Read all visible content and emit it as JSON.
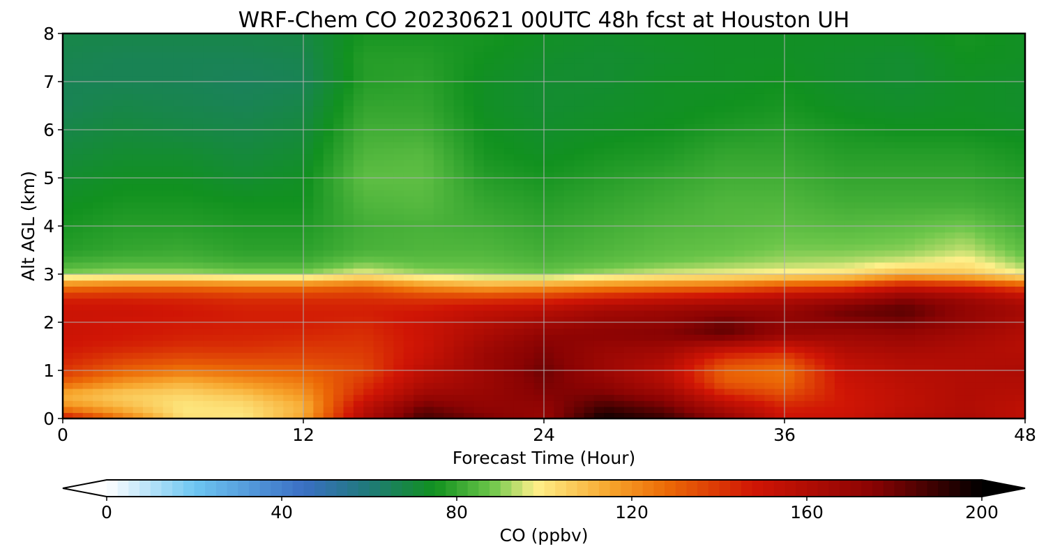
{
  "chart_data": {
    "type": "heatmap",
    "title": "WRF-Chem CO  20230621 00UTC 48h fcst at Houston UH",
    "xlabel": "Forecast Time (Hour)",
    "ylabel": "Alt AGL (km)",
    "xlim": [
      0,
      48
    ],
    "ylim": [
      0,
      8
    ],
    "x_ticks": [
      0,
      12,
      24,
      36,
      48
    ],
    "y_ticks": [
      0,
      1,
      2,
      3,
      4,
      5,
      6,
      7,
      8
    ],
    "grid": true,
    "x": [
      0,
      3,
      6,
      9,
      12,
      15,
      18,
      21,
      24,
      27,
      30,
      33,
      36,
      39,
      42,
      45,
      48
    ],
    "y": [
      0,
      0.25,
      0.5,
      0.75,
      1,
      1.25,
      1.5,
      1.75,
      2,
      2.25,
      2.5,
      2.75,
      3,
      3.25,
      3.5,
      4,
      4.5,
      5,
      5.5,
      6,
      6.5,
      7,
      7.5,
      8
    ],
    "profiles": [
      [
        150,
        120,
        112,
        130,
        140,
        145,
        148,
        150,
        150,
        150,
        145,
        125,
        90,
        82,
        78,
        76,
        74,
        72,
        70,
        68,
        66,
        66,
        67,
        68
      ],
      [
        125,
        110,
        106,
        118,
        130,
        138,
        145,
        148,
        148,
        150,
        145,
        128,
        92,
        84,
        80,
        78,
        76,
        74,
        72,
        70,
        68,
        66,
        66,
        68
      ],
      [
        102,
        100,
        104,
        112,
        125,
        135,
        142,
        146,
        147,
        148,
        144,
        128,
        92,
        84,
        81,
        78,
        76,
        74,
        72,
        69,
        67,
        66,
        66,
        68
      ],
      [
        100,
        102,
        108,
        118,
        128,
        136,
        142,
        145,
        146,
        146,
        142,
        126,
        90,
        82,
        79,
        77,
        75,
        72,
        70,
        68,
        66,
        65,
        66,
        68
      ],
      [
        115,
        112,
        118,
        124,
        130,
        136,
        140,
        144,
        146,
        146,
        142,
        126,
        90,
        82,
        79,
        77,
        75,
        74,
        72,
        70,
        68,
        66,
        67,
        69
      ],
      [
        160,
        155,
        145,
        140,
        136,
        138,
        140,
        142,
        144,
        146,
        142,
        130,
        98,
        88,
        83,
        82,
        84,
        86,
        84,
        82,
        80,
        78,
        78,
        76
      ],
      [
        188,
        180,
        168,
        160,
        156,
        152,
        150,
        150,
        150,
        148,
        140,
        120,
        92,
        86,
        84,
        83,
        85,
        86,
        85,
        82,
        80,
        79,
        78,
        76
      ],
      [
        178,
        172,
        170,
        168,
        168,
        168,
        166,
        162,
        158,
        154,
        140,
        115,
        90,
        86,
        84,
        82,
        80,
        78,
        76,
        75,
        74,
        74,
        75,
        76
      ],
      [
        170,
        172,
        176,
        178,
        180,
        178,
        176,
        172,
        165,
        158,
        142,
        118,
        88,
        84,
        82,
        80,
        78,
        76,
        74,
        73,
        72,
        72,
        73,
        74
      ],
      [
        198,
        188,
        178,
        172,
        168,
        168,
        170,
        174,
        170,
        165,
        148,
        122,
        92,
        86,
        84,
        82,
        80,
        78,
        76,
        74,
        73,
        72,
        72,
        73
      ],
      [
        190,
        180,
        170,
        160,
        158,
        162,
        168,
        176,
        172,
        168,
        152,
        125,
        96,
        88,
        86,
        84,
        82,
        80,
        77,
        75,
        74,
        74,
        73,
        74
      ],
      [
        172,
        160,
        145,
        132,
        130,
        140,
        158,
        182,
        180,
        172,
        155,
        128,
        98,
        90,
        87,
        85,
        84,
        82,
        80,
        77,
        75,
        74,
        74,
        74
      ],
      [
        150,
        145,
        135,
        128,
        126,
        135,
        150,
        170,
        172,
        170,
        160,
        135,
        100,
        92,
        89,
        86,
        84,
        82,
        80,
        78,
        76,
        75,
        74,
        74
      ],
      [
        150,
        148,
        148,
        150,
        152,
        156,
        162,
        168,
        175,
        180,
        165,
        138,
        102,
        93,
        89,
        85,
        82,
        80,
        78,
        76,
        74,
        73,
        73,
        74
      ],
      [
        158,
        155,
        155,
        156,
        158,
        160,
        165,
        170,
        178,
        184,
        175,
        150,
        112,
        96,
        90,
        86,
        82,
        80,
        78,
        75,
        73,
        72,
        72,
        74
      ],
      [
        162,
        160,
        160,
        160,
        160,
        160,
        162,
        165,
        170,
        172,
        168,
        145,
        108,
        100,
        94,
        88,
        82,
        80,
        78,
        75,
        74,
        74,
        75,
        76
      ],
      [
        155,
        155,
        158,
        160,
        162,
        160,
        158,
        160,
        162,
        165,
        158,
        135,
        98,
        90,
        86,
        82,
        80,
        78,
        76,
        74,
        73,
        73,
        74,
        74
      ]
    ],
    "colorbar": {
      "label": "CO  (ppbv)",
      "min": 0,
      "max": 200,
      "ticks": [
        0,
        40,
        80,
        120,
        160,
        200
      ],
      "extend": "both",
      "stops": [
        {
          "value": 0,
          "color": "#ffffff"
        },
        {
          "value": 20,
          "color": "#6ec6f2"
        },
        {
          "value": 45,
          "color": "#3a6fc4"
        },
        {
          "value": 60,
          "color": "#1f7a78"
        },
        {
          "value": 75,
          "color": "#11911f"
        },
        {
          "value": 88,
          "color": "#6cc64a"
        },
        {
          "value": 98,
          "color": "#fef08a"
        },
        {
          "value": 115,
          "color": "#f7a52c"
        },
        {
          "value": 128,
          "color": "#ec6a06"
        },
        {
          "value": 148,
          "color": "#d01505"
        },
        {
          "value": 175,
          "color": "#8a0303"
        },
        {
          "value": 200,
          "color": "#000000"
        }
      ]
    }
  }
}
